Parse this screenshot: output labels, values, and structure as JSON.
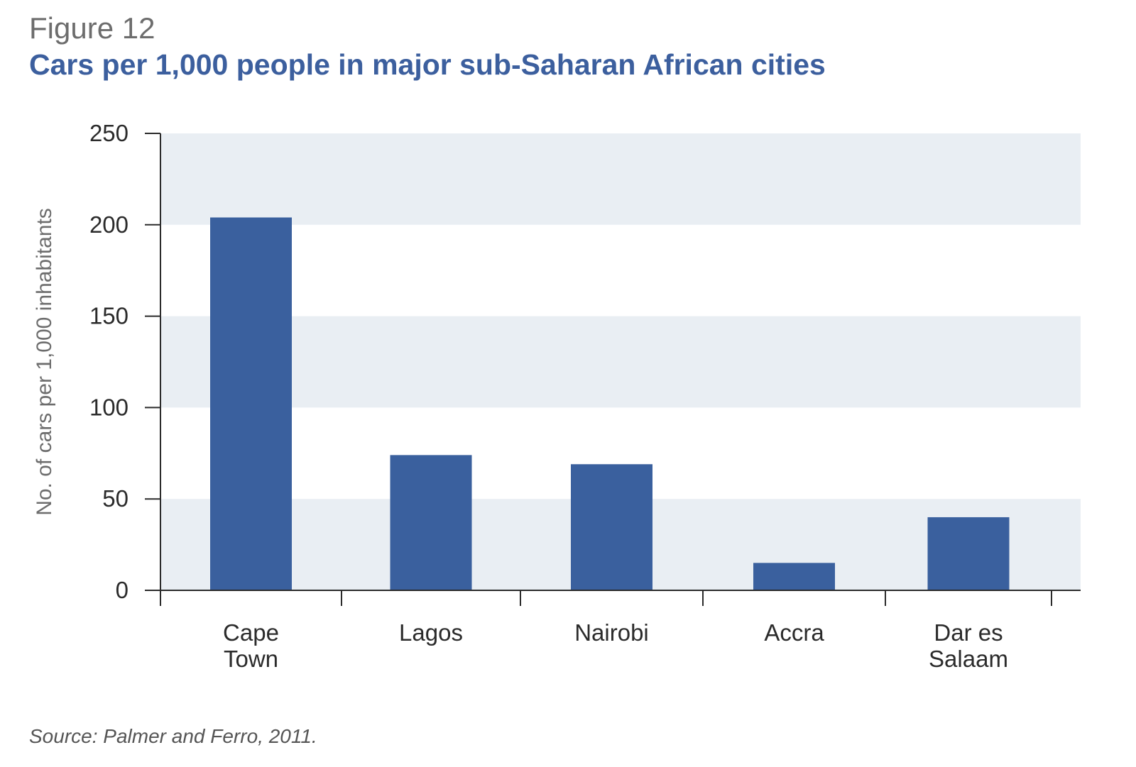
{
  "figure": {
    "label": "Figure 12",
    "source": "Source: Palmer and Ferro, 2011."
  },
  "colors": {
    "bar": "#3a609e",
    "band": "#e9eef3",
    "title": "#3c5f9e",
    "axis": "#2b2b2b"
  },
  "chart_data": {
    "type": "bar",
    "title": "Cars per 1,000 people in major sub-Saharan African cities",
    "ylabel": "No. of cars per 1,000 inhabitants",
    "xlabel": "",
    "categories": [
      [
        "Cape",
        "Town"
      ],
      [
        "Lagos"
      ],
      [
        "Nairobi"
      ],
      [
        "Accra"
      ],
      [
        "Dar es",
        "Salaam"
      ]
    ],
    "values": [
      204,
      74,
      69,
      15,
      40
    ],
    "ylim": [
      0,
      250
    ],
    "yticks": [
      "0",
      "50",
      "100",
      "150",
      "200",
      "250"
    ],
    "grid": "alternating horizontal bands",
    "legend": "none"
  }
}
